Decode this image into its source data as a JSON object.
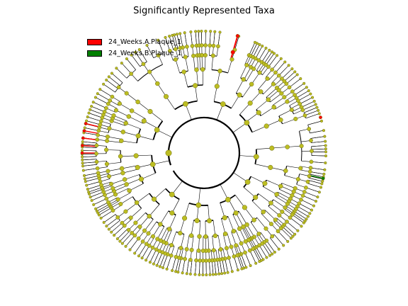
{
  "title": "Significantly Represented Taxa",
  "legend": [
    {
      "label": "24_Weeks.A.Plaque_1",
      "color": "#ff0000"
    },
    {
      "label": "24_Weeks.B.Plaque_1",
      "color": "#008000"
    }
  ],
  "colors": {
    "node_fill": "#bcbd22",
    "node_stroke": "#6b6b10",
    "edge": "#000000"
  }
}
